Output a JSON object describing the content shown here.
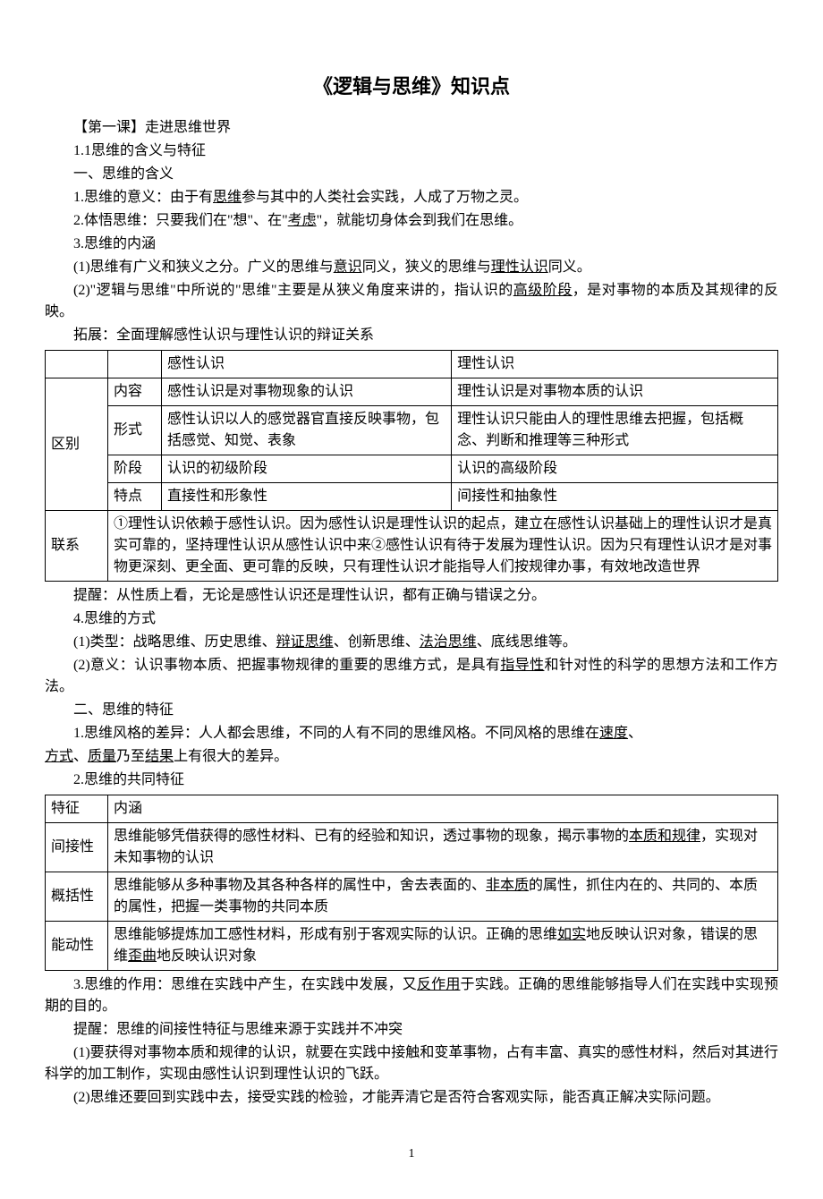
{
  "title": "《逻辑与思维》知识点",
  "sections": {
    "s1": "【第一课】走进思维世界",
    "s2": "1.1思维的含义与特征",
    "s3": "一、思维的含义",
    "s4_pre": "1.思维的意义：由于有",
    "s4_u": "思维",
    "s4_post": "参与其中的人类社会实践，人成了万物之灵。",
    "s5_pre": "2.体悟思维：只要我们在\"想\"、在\"",
    "s5_u": "考虑",
    "s5_post": "\"，就能切身体会到我们在思维。",
    "s6": "3.思维的内涵",
    "s7_pre": "(1)思维有广义和狭义之分。广义的思维与",
    "s7_u1": "意识",
    "s7_mid": "同义，狭义的思维与",
    "s7_u2": "理性认识",
    "s7_post": "同义。",
    "s8_pre": "(2)\"逻辑与思维\"中所说的\"思维\"主要是从狭义角度来讲的，指认识的",
    "s8_u": "高级阶段",
    "s8_post": "，是对事物的本质及其规律的反映。",
    "s9": "拓展：全面理解感性认识与理性认识的辩证关系"
  },
  "table1": {
    "header": {
      "c1": "",
      "c2": "",
      "c3": "感性认识",
      "c4": "理性认识"
    },
    "rows": [
      {
        "c1": "区别",
        "c2": "内容",
        "c3": "感性认识是对事物现象的认识",
        "c4": "理性认识是对事物本质的认识"
      },
      {
        "c2": "形式",
        "c3": "感性认识以人的感觉器官直接反映事物，包括感觉、知觉、表象",
        "c4": "理性认识只能由人的理性思维去把握，包括概念、判断和推理等三种形式"
      },
      {
        "c2": "阶段",
        "c3": "认识的初级阶段",
        "c4": "认识的高级阶段"
      },
      {
        "c2": "特点",
        "c3": "直接性和形象性",
        "c4": "间接性和抽象性"
      }
    ],
    "relation": {
      "label": "联系",
      "content": "①理性认识依赖于感性认识。因为感性认识是理性认识的起点，建立在感性认识基础上的理性认识才是真实可靠的，坚持理性认识从感性认识中来②感性认识有待于发展为理性认识。因为只有理性认识才是对事物更深刻、更全面、更可靠的反映，只有理性认识才能指导人们按规律办事，有效地改造世界"
    }
  },
  "sections2": {
    "s10": "提醒：从性质上看，无论是感性认识还是理性认识，都有正确与错误之分。",
    "s11": "4.思维的方式",
    "s12_pre": "(1)类型：战略思维、历史思维、",
    "s12_u1": "辩证思维",
    "s12_mid1": "、创新思维、",
    "s12_u2": "法治思维",
    "s12_post": "、底线思维等。",
    "s13_pre": "(2)意义：认识事物本质、把握事物规律的重要的思维方式，是具有",
    "s13_u": "指导性",
    "s13_post": "和针对性的科学的思想方法和工作方法。",
    "s14": "二、思维的特征",
    "s15_pre": "1.思维风格的差异：人人都会思维，不同的人有不同的思维风格。不同风格的思维在",
    "s15_u1": "速度",
    "s15_mid1": "、",
    "s15_u2": "方式",
    "s15_mid2": "、",
    "s15_u3": "质量",
    "s15_mid3": "乃至",
    "s15_u4": "结果",
    "s15_post": "上有很大的差异。",
    "s16": "2.思维的共同特征"
  },
  "table2": {
    "header": {
      "c1": "特征",
      "c2": "内涵"
    },
    "rows": [
      {
        "c1": "间接性",
        "c2_pre": "思维能够凭借获得的感性材料、已有的经验和知识，透过事物的现象，揭示事物的",
        "c2_u1": "本质和规律",
        "c2_post": "，实现对未知事物的认识"
      },
      {
        "c1": "概括性",
        "c2_pre": "思维能够从多种事物及其各种各样的属性中，舍去表面的、",
        "c2_u1": "非本质",
        "c2_post": "的属性，抓住内在的、共同的、本质的属性，把握一类事物的共同本质"
      },
      {
        "c1": "能动性",
        "c2_pre": "思维能够提炼加工感性材料，形成有别于客观实际的认识。正确的思维",
        "c2_u1": "如实",
        "c2_mid": "地反映认识对象，错误的思维",
        "c2_u2": "歪曲",
        "c2_post": "地反映认识对象"
      }
    ]
  },
  "sections3": {
    "s17_pre": "3.思维的作用：思维在实践中产生，在实践中发展，又",
    "s17_u": "反作用",
    "s17_post": "于实践。正确的思维能够指导人们在实践中实现预期的目的。",
    "s18": "提醒：思维的间接性特征与思维来源于实践并不冲突",
    "s19": "(1)要获得对事物本质和规律的认识，就要在实践中接触和变革事物，占有丰富、真实的感性材料，然后对其进行科学的加工制作，实现由感性认识到理性认识的飞跃。",
    "s20": "(2)思维还要回到实践中去，接受实践的检验，才能弄清它是否符合客观实际，能否真正解决实际问题。"
  },
  "page_number": "1"
}
